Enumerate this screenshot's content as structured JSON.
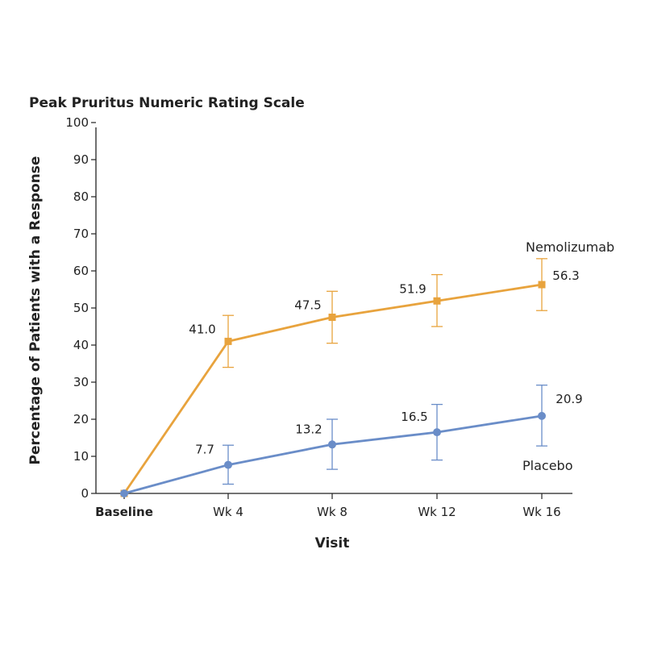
{
  "chart_data": {
    "type": "line",
    "title": "Peak Pruritus Numeric Rating Scale",
    "xlabel": "Visit",
    "ylabel": "Percentage of Patients with a Response",
    "ylim": [
      0,
      100
    ],
    "yticks": [
      "0",
      "10",
      "20",
      "30",
      "40",
      "50",
      "60",
      "70",
      "80",
      "90",
      "100"
    ],
    "categories": [
      "Baseline",
      "Wk 4",
      "Wk 8",
      "Wk 12",
      "Wk 16"
    ],
    "grid": false,
    "series": [
      {
        "name": "Nemolizumab",
        "color": "#E8A33D",
        "marker": "square",
        "values": [
          0,
          41.0,
          47.5,
          51.9,
          56.3
        ],
        "labels": [
          "",
          "41.0",
          "47.5",
          "51.9",
          "56.3"
        ],
        "err_low": [
          null,
          34,
          40.5,
          45,
          49.3
        ],
        "err_high": [
          null,
          48,
          54.5,
          59,
          63.3
        ]
      },
      {
        "name": "Placebo",
        "color": "#6A8DC8",
        "marker": "circle",
        "values": [
          0,
          7.7,
          13.2,
          16.5,
          20.9
        ],
        "labels": [
          "",
          "7.7",
          "13.2",
          "16.5",
          "20.9"
        ],
        "err_low": [
          null,
          2.5,
          6.5,
          9,
          12.8
        ],
        "err_high": [
          null,
          13,
          20,
          24,
          29.2
        ]
      }
    ]
  }
}
